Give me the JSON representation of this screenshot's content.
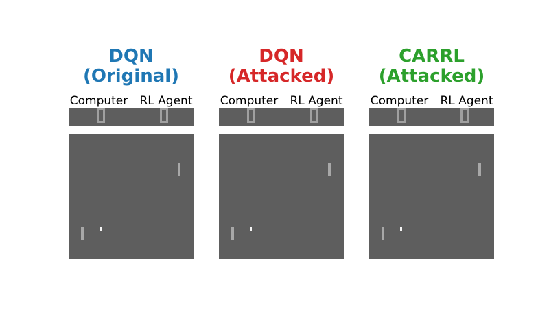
{
  "panels": [
    {
      "title_line1": "DQN",
      "title_line2": "(Original)",
      "color": "#1f77b4",
      "left_label": "Computer",
      "right_label": "RL Agent",
      "computer_score": "0",
      "agent_score": "0"
    },
    {
      "title_line1": "DQN",
      "title_line2": "(Attacked)",
      "color": "#d62728",
      "left_label": "Computer",
      "right_label": "RL Agent",
      "computer_score": "0",
      "agent_score": "0"
    },
    {
      "title_line1": "CARRL",
      "title_line2": "(Attacked)",
      "color": "#2ca02c",
      "left_label": "Computer",
      "right_label": "RL Agent",
      "computer_score": "0",
      "agent_score": "0"
    }
  ]
}
